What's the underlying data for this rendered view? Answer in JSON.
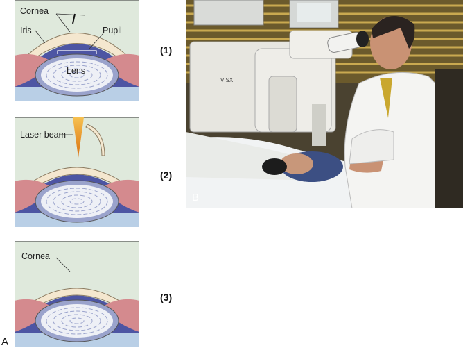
{
  "figure": {
    "panel_a_letter": "A",
    "panel_b_letter": "B",
    "steps": [
      {
        "number": "(1)",
        "labels": {
          "cornea": "Cornea",
          "iris": "Iris",
          "pupil": "Pupil",
          "lens": "Lens"
        }
      },
      {
        "number": "(2)",
        "labels": {
          "laser": "Laser beam"
        }
      },
      {
        "number": "(3)",
        "labels": {
          "cornea": "Cornea"
        }
      }
    ]
  },
  "colors": {
    "background_green": "#dfe9dc",
    "cornea_cream": "#f4e7cf",
    "iris_blue": "#4d55a3",
    "lens_outer": "#9aa3cc",
    "lens_inner": "#eef0f6",
    "ciliary_pink": "#d48a8e",
    "vitreous_blue": "#b9cfe6",
    "laser_orange": "#f0a030"
  }
}
